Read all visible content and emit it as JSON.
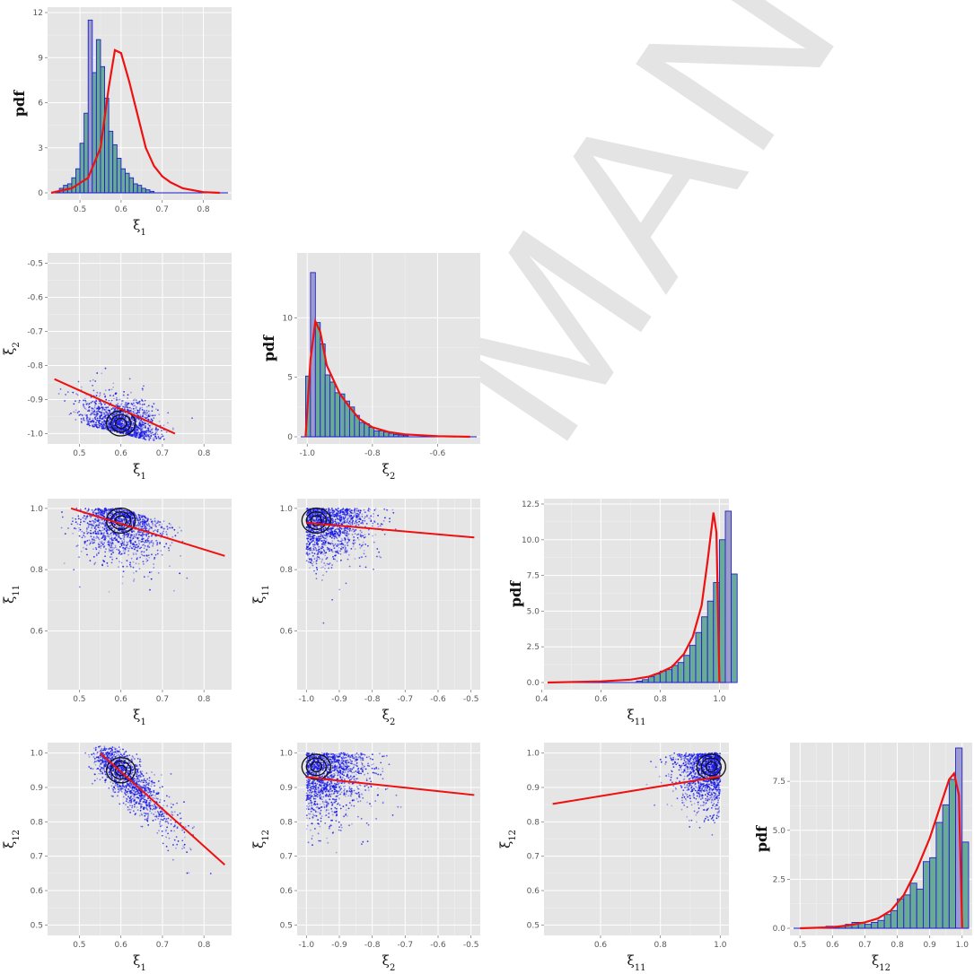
{
  "watermark": "MANUSCRIPT",
  "chart_data": {
    "type": "scatter",
    "layout": "pairs-lower-triangle",
    "variables": [
      "ξ1",
      "ξ2",
      "ξ11",
      "ξ12"
    ],
    "variable_names": [
      "ξ",
      "ξ",
      "ξ",
      "ξ"
    ],
    "variable_subscripts": [
      "1",
      "2",
      "11",
      "12"
    ],
    "pdf_label": "pdf",
    "ranges": {
      "xi1": [
        0.43,
        0.86
      ],
      "xi2": [
        -1.02,
        -0.48
      ],
      "xi11": [
        0.42,
        1.02
      ],
      "xi12": [
        0.48,
        1.02
      ]
    },
    "diagonals": [
      {
        "variable": "ξ1",
        "xticks": [
          "0.5",
          "0.6",
          "0.7",
          "0.8"
        ],
        "yticks": [
          "0",
          "3",
          "6",
          "9",
          "12"
        ],
        "ylim": [
          0,
          12
        ],
        "bins": {
          "start": 0.44,
          "width": 0.01,
          "heights": [
            0.1,
            0.3,
            0.5,
            0.6,
            1.0,
            1.6,
            3.3,
            5.3,
            11.5,
            8.0,
            10.2,
            8.4,
            6.3,
            4.1,
            3.2,
            2.3,
            1.6,
            1.3,
            1.0,
            0.6,
            0.5,
            0.3,
            0.2,
            0.1
          ]
        },
        "kde": [
          [
            0.43,
            0
          ],
          [
            0.48,
            0.3
          ],
          [
            0.52,
            1.0
          ],
          [
            0.55,
            3.0
          ],
          [
            0.57,
            7.0
          ],
          [
            0.585,
            9.5
          ],
          [
            0.6,
            9.3
          ],
          [
            0.62,
            7.4
          ],
          [
            0.64,
            5.2
          ],
          [
            0.66,
            3.0
          ],
          [
            0.68,
            1.8
          ],
          [
            0.7,
            1.1
          ],
          [
            0.72,
            0.7
          ],
          [
            0.75,
            0.3
          ],
          [
            0.8,
            0.05
          ],
          [
            0.84,
            0
          ]
        ]
      },
      {
        "variable": "ξ2",
        "xticks": [
          "-1.0",
          "-0.8",
          "-0.6"
        ],
        "yticks": [
          "0",
          "5",
          "10"
        ],
        "ylim": [
          0,
          15
        ],
        "bins": {
          "start": -1.005,
          "width": 0.015,
          "heights": [
            5.1,
            13.8,
            9.6,
            7.8,
            5.2,
            4.6,
            3.7,
            3.6,
            3.0,
            2.5,
            1.8,
            1.2,
            1.1,
            0.8,
            0.5,
            0.5,
            0.4,
            0.3,
            0.2,
            0.15,
            0.1
          ]
        },
        "kde": [
          [
            -1.005,
            0
          ],
          [
            -0.99,
            6.5
          ],
          [
            -0.975,
            9.7
          ],
          [
            -0.96,
            8.8
          ],
          [
            -0.94,
            6.0
          ],
          [
            -0.9,
            3.6
          ],
          [
            -0.87,
            2.5
          ],
          [
            -0.84,
            1.5
          ],
          [
            -0.8,
            0.8
          ],
          [
            -0.75,
            0.4
          ],
          [
            -0.7,
            0.2
          ],
          [
            -0.6,
            0.05
          ],
          [
            -0.5,
            0
          ]
        ]
      },
      {
        "variable": "ξ11",
        "xticks": [
          "0.4",
          "0.6",
          "0.8",
          "1.0"
        ],
        "yticks": [
          "0.0",
          "2.5",
          "5.0",
          "7.5",
          "10.0",
          "12.5"
        ],
        "ylim": [
          0,
          12.5
        ],
        "bins": {
          "start": 0.72,
          "width": 0.02,
          "heights": [
            0.1,
            0.2,
            0.4,
            0.6,
            0.8,
            0.9,
            1.2,
            1.4,
            1.9,
            2.6,
            3.5,
            4.6,
            5.7,
            7.0,
            10.0,
            12.0,
            7.6
          ]
        },
        "kde": [
          [
            0.42,
            0
          ],
          [
            0.6,
            0.08
          ],
          [
            0.7,
            0.2
          ],
          [
            0.76,
            0.4
          ],
          [
            0.8,
            0.7
          ],
          [
            0.84,
            1.1
          ],
          [
            0.88,
            2.0
          ],
          [
            0.91,
            3.2
          ],
          [
            0.94,
            5.4
          ],
          [
            0.96,
            8.5
          ],
          [
            0.98,
            11.9
          ],
          [
            0.99,
            10.5
          ],
          [
            1.0,
            0
          ]
        ]
      },
      {
        "variable": "ξ12",
        "xticks": [
          "0.5",
          "0.6",
          "0.7",
          "0.8",
          "0.9",
          "1.0"
        ],
        "yticks": [
          "0.0",
          "2.5",
          "5.0",
          "7.5"
        ],
        "ylim": [
          0,
          9.2
        ],
        "bins": {
          "start": 0.58,
          "width": 0.02,
          "heights": [
            0.1,
            0.1,
            0.1,
            0.2,
            0.3,
            0.3,
            0.2,
            0.3,
            0.4,
            0.7,
            0.9,
            1.5,
            1.7,
            2.3,
            2.0,
            3.4,
            3.6,
            5.4,
            6.3,
            7.6,
            9.2,
            4.4
          ]
        },
        "kde": [
          [
            0.5,
            0
          ],
          [
            0.6,
            0.05
          ],
          [
            0.65,
            0.15
          ],
          [
            0.7,
            0.3
          ],
          [
            0.74,
            0.5
          ],
          [
            0.78,
            0.9
          ],
          [
            0.82,
            1.7
          ],
          [
            0.86,
            3.0
          ],
          [
            0.9,
            4.6
          ],
          [
            0.93,
            6.1
          ],
          [
            0.96,
            7.6
          ],
          [
            0.975,
            7.9
          ],
          [
            0.99,
            6.8
          ],
          [
            1.0,
            0
          ]
        ]
      }
    ],
    "scatter_panels": [
      {
        "x": "ξ1",
        "y": "ξ2",
        "xticks": [
          "0.5",
          "0.6",
          "0.7",
          "0.8"
        ],
        "yticks": [
          "-0.5",
          "-0.6",
          "-0.7",
          "-0.8",
          "-0.9",
          "-1.0"
        ],
        "regression": {
          "x0": 0.44,
          "y0": -0.84,
          "x1": 0.73,
          "y1": -1.0
        },
        "cloud": {
          "cx": 0.6,
          "cy": -0.95,
          "sx": 0.045,
          "sy": 0.04,
          "skew": "y-min"
        }
      },
      {
        "x": "ξ1",
        "y": "ξ11",
        "xticks": [
          "0.5",
          "0.6",
          "0.7",
          "0.8"
        ],
        "yticks": [
          "1.0",
          "0.8",
          "0.6"
        ],
        "regression": {
          "x0": 0.48,
          "y0": 1.0,
          "x1": 0.85,
          "y1": 0.845
        },
        "cloud": {
          "cx": 0.6,
          "cy": 0.97,
          "sx": 0.05,
          "sy": 0.06,
          "skew": "y-max"
        }
      },
      {
        "x": "ξ2",
        "y": "ξ11",
        "xticks": [
          "-1.0",
          "-0.9",
          "-0.8",
          "-0.7",
          "-0.6",
          "-0.5"
        ],
        "yticks": [
          "1.0",
          "0.8",
          "0.6"
        ],
        "regression": {
          "x0": -1.0,
          "y0": 0.953,
          "x1": -0.49,
          "y1": 0.905
        },
        "cloud": {
          "cx": -0.95,
          "cy": 0.97,
          "sx": 0.06,
          "sy": 0.06,
          "skew": "corner"
        }
      },
      {
        "x": "ξ1",
        "y": "ξ12",
        "xticks": [
          "0.5",
          "0.6",
          "0.7",
          "0.8"
        ],
        "yticks": [
          "1.0",
          "0.9",
          "0.8",
          "0.7",
          "0.6",
          "0.5"
        ],
        "regression": {
          "x0": 0.55,
          "y0": 1.0,
          "x1": 0.85,
          "y1": 0.675
        },
        "cloud": {
          "cx": 0.6,
          "cy": 0.94,
          "sx": 0.05,
          "sy": 0.06,
          "skew": "diag"
        }
      },
      {
        "x": "ξ2",
        "y": "ξ12",
        "xticks": [
          "-1.0",
          "-0.9",
          "-0.8",
          "-0.7",
          "-0.6",
          "-0.5"
        ],
        "yticks": [
          "1.0",
          "0.9",
          "0.8",
          "0.7",
          "0.6",
          "0.5"
        ],
        "regression": {
          "x0": -1.0,
          "y0": 0.93,
          "x1": -0.49,
          "y1": 0.878
        },
        "cloud": {
          "cx": -0.95,
          "cy": 0.93,
          "sx": 0.06,
          "sy": 0.07,
          "skew": "corner"
        }
      },
      {
        "x": "ξ11",
        "y": "ξ12",
        "xticks": [
          "0.6",
          "0.8",
          "1.0"
        ],
        "yticks": [
          "1.0",
          "0.9",
          "0.8",
          "0.7",
          "0.6",
          "0.5"
        ],
        "regression": {
          "x0": 0.44,
          "y0": 0.852,
          "x1": 1.0,
          "y1": 0.932
        },
        "cloud": {
          "cx": 0.96,
          "cy": 0.93,
          "sx": 0.05,
          "sy": 0.06,
          "skew": "x-max"
        }
      }
    ]
  }
}
